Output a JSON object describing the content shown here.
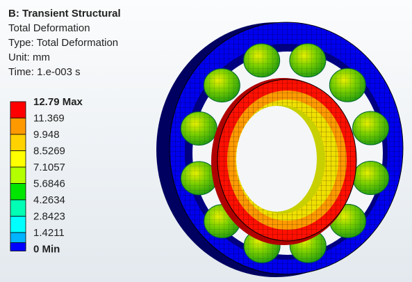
{
  "header": {
    "title": "B: Transient Structural",
    "lines": [
      "Total Deformation",
      "Type: Total Deformation",
      "Unit: mm",
      "Time: 1.e-003 s"
    ]
  },
  "legend": {
    "labels": [
      "12.79 Max",
      "11.369",
      "9.948",
      "8.5269",
      "7.1057",
      "5.6846",
      "4.2634",
      "2.8423",
      "1.4211",
      "0 Min"
    ],
    "colors": [
      "#ff0000",
      "#ff9900",
      "#ffd200",
      "#ffff00",
      "#b4ff00",
      "#00e600",
      "#00ffb4",
      "#00ffff",
      "#00b4ff",
      "#0000ff"
    ]
  }
}
